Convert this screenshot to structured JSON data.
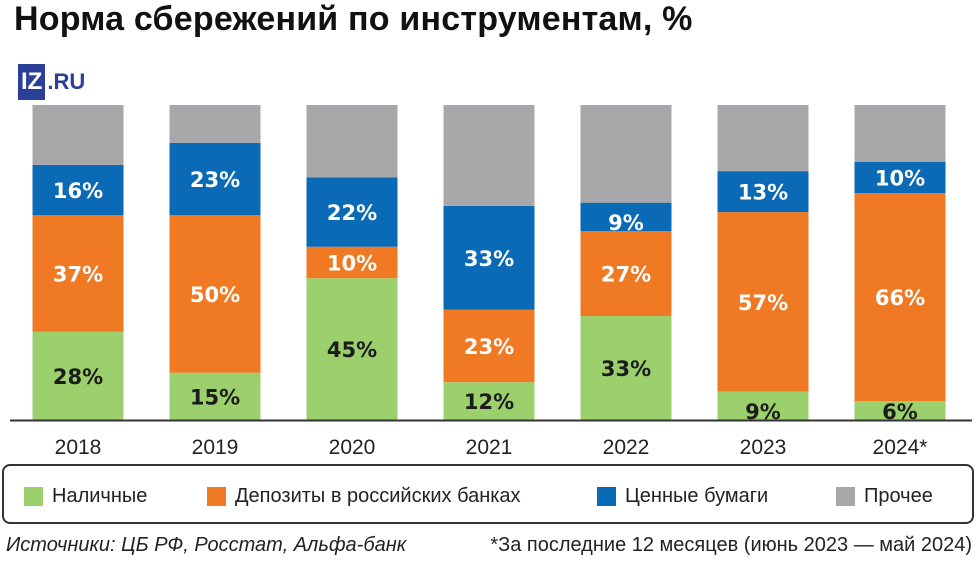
{
  "header": {
    "title": "Норма сбережений по инструментам, %"
  },
  "logo": {
    "mark": "IZ",
    "text": ".RU"
  },
  "colors": {
    "cash": "#9bd06c",
    "deposits": "#f07a24",
    "securities": "#0a6ab5",
    "other": "#a8a8aa"
  },
  "chart_data": {
    "type": "bar",
    "stacked": true,
    "categories": [
      "2018",
      "2019",
      "2020",
      "2021",
      "2022",
      "2023",
      "2024*"
    ],
    "series": [
      {
        "name": "Наличные",
        "key": "cash",
        "values": [
          28,
          15,
          45,
          12,
          33,
          9,
          6
        ],
        "labels": [
          "28%",
          "15%",
          "45%",
          "12%",
          "33%",
          "9%",
          "6%"
        ]
      },
      {
        "name": "Депозиты в российских банках",
        "key": "deposits",
        "values": [
          37,
          50,
          10,
          23,
          27,
          57,
          66
        ],
        "labels": [
          "37%",
          "50%",
          "10%",
          "23%",
          "27%",
          "57%",
          "66%"
        ]
      },
      {
        "name": "Ценные бумаги",
        "key": "securities",
        "values": [
          16,
          23,
          22,
          33,
          9,
          13,
          10
        ],
        "labels": [
          "16%",
          "23%",
          "22%",
          "33%",
          "9%",
          "13%",
          "10%"
        ]
      },
      {
        "name": "Прочее",
        "key": "other",
        "values": [
          19,
          12,
          23,
          32,
          31,
          21,
          18
        ],
        "labels": []
      }
    ],
    "ylim": [
      0,
      115
    ],
    "grid": false,
    "legend_position": "bottom",
    "xlabel": "",
    "ylabel": ""
  },
  "footer": {
    "sources": "Источники: ЦБ РФ, Росстат, Альфа-банк",
    "note": "*За последние 12 месяцев (июнь 2023 — май 2024)"
  }
}
